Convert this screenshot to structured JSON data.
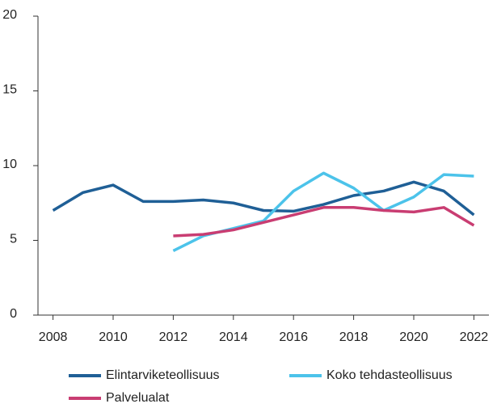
{
  "chart_data": {
    "type": "line",
    "x": [
      2008,
      2009,
      2010,
      2011,
      2012,
      2013,
      2014,
      2015,
      2016,
      2017,
      2018,
      2019,
      2020,
      2021,
      2022
    ],
    "series": [
      {
        "name": "Elintarviketeollisuus",
        "color": "#1f5f96",
        "values": [
          7.0,
          8.2,
          8.7,
          7.6,
          7.6,
          7.7,
          7.5,
          7.0,
          6.95,
          7.4,
          8.0,
          8.3,
          8.9,
          8.3,
          6.7
        ]
      },
      {
        "name": "Koko tehdasteollisuus",
        "color": "#4cc3ea",
        "values": [
          null,
          null,
          null,
          null,
          4.3,
          5.3,
          5.8,
          6.3,
          8.3,
          9.5,
          8.5,
          7.0,
          7.9,
          9.4,
          9.3
        ]
      },
      {
        "name": "Palvelualat",
        "color": "#c93d72",
        "values": [
          null,
          null,
          null,
          null,
          5.3,
          5.4,
          5.7,
          6.2,
          6.7,
          7.2,
          7.2,
          7.0,
          6.9,
          7.2,
          6.0
        ]
      }
    ],
    "xlim": [
      2007.5,
      2022.5
    ],
    "xticks": [
      2008,
      2010,
      2012,
      2014,
      2016,
      2018,
      2020,
      2022
    ],
    "ylim": [
      0,
      20
    ],
    "yticks": [
      0,
      5,
      10,
      15,
      20
    ],
    "grid": false
  }
}
